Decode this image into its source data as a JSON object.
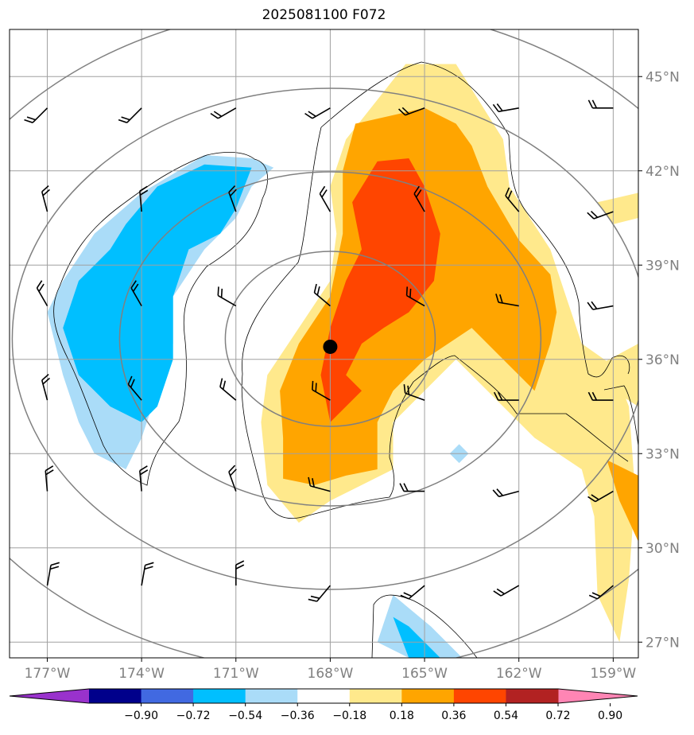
{
  "chart_data": {
    "type": "contour map",
    "title": "2025081100 F072",
    "x_ticks": [
      "177°W",
      "174°W",
      "171°W",
      "168°W",
      "165°W",
      "162°W",
      "159°W"
    ],
    "y_ticks": [
      "45°N",
      "42°N",
      "39°N",
      "36°N",
      "33°N",
      "30°N",
      "27°N"
    ],
    "x_tick_values": [
      -177,
      -174,
      -171,
      -168,
      -165,
      -162,
      -159
    ],
    "y_tick_values": [
      45,
      42,
      39,
      36,
      33,
      30,
      27
    ],
    "lon_range": [
      -178.2,
      -158.2
    ],
    "lat_range": [
      26.5,
      46.5
    ],
    "grid": true,
    "center_marker": {
      "lon": -168,
      "lat": 36.4
    },
    "range_rings": 4,
    "colorbar": {
      "orientation": "horizontal",
      "extend": "both",
      "ticks": [
        "−0.90",
        "−0.72",
        "−0.54",
        "−0.36",
        "−0.18",
        "0.18",
        "0.36",
        "0.54",
        "0.72",
        "0.90"
      ],
      "colors": [
        "#9932cc",
        "#00008b",
        "#4169e1",
        "#00bfff",
        "#aadcf8",
        "#ffffff",
        "#ffe98c",
        "#ffa500",
        "#ff4500",
        "#b22222",
        "#ff85b4"
      ]
    },
    "shaded_regions": [
      {
        "level": "0.18 to 0.36",
        "color": "#ffe98c",
        "points": [
          [
            -167.5,
            43.0
          ],
          [
            -165.6,
            45.4
          ],
          [
            -164.0,
            45.4
          ],
          [
            -162.5,
            43.0
          ],
          [
            -162.3,
            41.5
          ],
          [
            -161.0,
            39.5
          ],
          [
            -160.5,
            38.0
          ],
          [
            -160.0,
            36.5
          ],
          [
            -159.0,
            35.8
          ],
          [
            -158.5,
            34.5
          ],
          [
            -158.3,
            31.8
          ],
          [
            -158.5,
            29.0
          ],
          [
            -158.8,
            27.0
          ],
          [
            -159.5,
            28.5
          ],
          [
            -159.6,
            31.0
          ],
          [
            -160.0,
            32.5
          ],
          [
            -161.5,
            33.5
          ],
          [
            -162.5,
            34.5
          ],
          [
            -164.0,
            36.0
          ],
          [
            -166.0,
            34.0
          ],
          [
            -166.0,
            32.5
          ],
          [
            -167.0,
            32.0
          ],
          [
            -168.0,
            31.5
          ],
          [
            -169.0,
            30.8
          ],
          [
            -170.0,
            32.0
          ],
          [
            -170.2,
            34.0
          ],
          [
            -170.0,
            35.5
          ],
          [
            -169.0,
            37.0
          ],
          [
            -168.0,
            38.5
          ],
          [
            -167.8,
            40.0
          ],
          [
            -168.0,
            41.5
          ]
        ]
      },
      {
        "level": "0.18 to 0.36",
        "color": "#ffe98c",
        "points": [
          [
            -159.5,
            41.0
          ],
          [
            -158.2,
            41.3
          ],
          [
            -158.2,
            40.5
          ],
          [
            -159.0,
            40.3
          ]
        ]
      },
      {
        "level": "0.18 to 0.36",
        "color": "#ffe98c",
        "points": [
          [
            -159.5,
            35.8
          ],
          [
            -158.2,
            36.5
          ],
          [
            -158.2,
            34.5
          ],
          [
            -159.0,
            35.0
          ]
        ]
      },
      {
        "level": "0.36 to 0.54",
        "color": "#ffa500",
        "points": [
          [
            -167.2,
            43.5
          ],
          [
            -165.0,
            44.0
          ],
          [
            -164.0,
            43.5
          ],
          [
            -163.5,
            42.8
          ],
          [
            -163.0,
            41.5
          ],
          [
            -162.0,
            39.8
          ],
          [
            -161.0,
            38.7
          ],
          [
            -160.8,
            37.5
          ],
          [
            -161.0,
            36.5
          ],
          [
            -161.5,
            35.0
          ],
          [
            -162.5,
            36.0
          ],
          [
            -163.5,
            37.0
          ],
          [
            -165.0,
            36.0
          ],
          [
            -166.0,
            35.0
          ],
          [
            -166.5,
            34.0
          ],
          [
            -166.5,
            32.5
          ],
          [
            -167.5,
            32.3
          ],
          [
            -168.5,
            32.0
          ],
          [
            -169.5,
            32.2
          ],
          [
            -169.5,
            33.5
          ],
          [
            -169.6,
            35.0
          ],
          [
            -169.0,
            36.5
          ],
          [
            -168.0,
            38.0
          ],
          [
            -167.6,
            40.0
          ],
          [
            -167.6,
            42.0
          ]
        ]
      },
      {
        "level": "0.36 to 0.54",
        "color": "#ffa500",
        "points": [
          [
            -159.2,
            32.8
          ],
          [
            -158.2,
            32.3
          ],
          [
            -158.2,
            30.2
          ],
          [
            -158.8,
            31.5
          ]
        ]
      },
      {
        "level": "0.54 to 0.72",
        "color": "#ff4500",
        "points": [
          [
            -166.5,
            42.3
          ],
          [
            -165.5,
            42.4
          ],
          [
            -165.0,
            41.5
          ],
          [
            -164.5,
            40.0
          ],
          [
            -164.7,
            38.5
          ],
          [
            -165.5,
            37.5
          ],
          [
            -166.3,
            37.0
          ],
          [
            -167.0,
            36.5
          ],
          [
            -167.5,
            35.5
          ],
          [
            -167.0,
            35.0
          ],
          [
            -168.0,
            34.0
          ],
          [
            -168.3,
            35.5
          ],
          [
            -168.0,
            37.0
          ],
          [
            -167.5,
            38.5
          ],
          [
            -167.0,
            39.5
          ],
          [
            -167.3,
            41.0
          ]
        ]
      },
      {
        "level": "−0.36 to −0.18",
        "color": "#aadcf8",
        "points": [
          [
            -174.0,
            41.3
          ],
          [
            -172.0,
            42.5
          ],
          [
            -170.5,
            42.4
          ],
          [
            -169.8,
            42.1
          ],
          [
            -170.5,
            41.5
          ],
          [
            -171.0,
            40.5
          ],
          [
            -172.0,
            39.5
          ],
          [
            -173.0,
            38.0
          ],
          [
            -173.0,
            36.5
          ],
          [
            -173.5,
            35.0
          ],
          [
            -174.0,
            33.5
          ],
          [
            -174.5,
            32.5
          ],
          [
            -175.5,
            33.0
          ],
          [
            -176.0,
            34.0
          ],
          [
            -176.5,
            35.5
          ],
          [
            -177.0,
            37.5
          ],
          [
            -176.5,
            38.5
          ],
          [
            -175.5,
            40.0
          ]
        ]
      },
      {
        "level": "−0.54 to −0.36",
        "color": "#00bfff",
        "points": [
          [
            -173.5,
            41.5
          ],
          [
            -172.0,
            42.2
          ],
          [
            -170.5,
            42.1
          ],
          [
            -171.0,
            40.8
          ],
          [
            -171.5,
            40.0
          ],
          [
            -172.5,
            39.5
          ],
          [
            -173.0,
            38.0
          ],
          [
            -173.0,
            36.0
          ],
          [
            -173.5,
            34.5
          ],
          [
            -174.0,
            34.0
          ],
          [
            -175.0,
            34.5
          ],
          [
            -176.0,
            35.5
          ],
          [
            -176.5,
            37.0
          ],
          [
            -176.0,
            38.5
          ],
          [
            -175.0,
            39.5
          ],
          [
            -174.5,
            40.3
          ]
        ]
      },
      {
        "level": "−0.36 to −0.18",
        "color": "#aadcf8",
        "points": [
          [
            -165.5,
            26.5
          ],
          [
            -163.8,
            26.5
          ],
          [
            -164.8,
            27.5
          ],
          [
            -166.0,
            28.5
          ],
          [
            -166.5,
            27.0
          ]
        ]
      },
      {
        "level": "−0.54 to −0.36",
        "color": "#00bfff",
        "points": [
          [
            -165.5,
            26.5
          ],
          [
            -164.5,
            26.5
          ],
          [
            -165.5,
            27.5
          ],
          [
            -166.0,
            27.8
          ]
        ]
      },
      {
        "level": "−0.36 to −0.18",
        "color": "#aadcf8",
        "points": [
          [
            -163.9,
            33.3
          ],
          [
            -163.6,
            33.0
          ],
          [
            -163.9,
            32.7
          ],
          [
            -164.2,
            33.0
          ]
        ]
      }
    ],
    "wind_barbs": [
      {
        "lon": -177,
        "lat": 44.0,
        "dir": 225
      },
      {
        "lon": -174,
        "lat": 44.0,
        "dir": 225
      },
      {
        "lon": -171,
        "lat": 44.0,
        "dir": 240
      },
      {
        "lon": -168,
        "lat": 44.0,
        "dir": 240
      },
      {
        "lon": -165,
        "lat": 44.0,
        "dir": 250
      },
      {
        "lon": -162,
        "lat": 44.0,
        "dir": 260
      },
      {
        "lon": -159,
        "lat": 44.0,
        "dir": 270
      },
      {
        "lon": -177,
        "lat": 40.7,
        "dir": 345
      },
      {
        "lon": -174,
        "lat": 40.7,
        "dir": 355
      },
      {
        "lon": -171,
        "lat": 40.7,
        "dir": 340
      },
      {
        "lon": -168,
        "lat": 40.7,
        "dir": 330
      },
      {
        "lon": -165,
        "lat": 40.7,
        "dir": 330
      },
      {
        "lon": -162,
        "lat": 40.7,
        "dir": 320
      },
      {
        "lon": -159,
        "lat": 40.7,
        "dir": 250
      },
      {
        "lon": -177,
        "lat": 37.7,
        "dir": 330
      },
      {
        "lon": -174,
        "lat": 37.7,
        "dir": 330
      },
      {
        "lon": -171,
        "lat": 37.7,
        "dir": 300
      },
      {
        "lon": -168,
        "lat": 37.7,
        "dir": 310
      },
      {
        "lon": -165,
        "lat": 37.7,
        "dir": 300
      },
      {
        "lon": -162,
        "lat": 37.7,
        "dir": 280
      },
      {
        "lon": -159,
        "lat": 37.7,
        "dir": 260
      },
      {
        "lon": -177,
        "lat": 34.7,
        "dir": 345
      },
      {
        "lon": -174,
        "lat": 34.7,
        "dir": 320
      },
      {
        "lon": -171,
        "lat": 34.7,
        "dir": 310
      },
      {
        "lon": -168,
        "lat": 34.7,
        "dir": 300
      },
      {
        "lon": -165,
        "lat": 34.7,
        "dir": 290
      },
      {
        "lon": -162,
        "lat": 34.7,
        "dir": 270
      },
      {
        "lon": -159,
        "lat": 34.7,
        "dir": 270
      },
      {
        "lon": -177,
        "lat": 31.8,
        "dir": 355
      },
      {
        "lon": -174,
        "lat": 31.8,
        "dir": 355
      },
      {
        "lon": -171,
        "lat": 31.8,
        "dir": 340
      },
      {
        "lon": -168,
        "lat": 31.8,
        "dir": 285
      },
      {
        "lon": -165,
        "lat": 31.8,
        "dir": 270
      },
      {
        "lon": -162,
        "lat": 31.8,
        "dir": 255
      },
      {
        "lon": -159,
        "lat": 31.8,
        "dir": 240
      },
      {
        "lon": -177,
        "lat": 28.8,
        "dir": 10
      },
      {
        "lon": -174,
        "lat": 28.8,
        "dir": 10
      },
      {
        "lon": -171,
        "lat": 28.8,
        "dir": 0
      },
      {
        "lon": -168,
        "lat": 28.8,
        "dir": 220
      },
      {
        "lon": -165,
        "lat": 28.8,
        "dir": 230
      },
      {
        "lon": -162,
        "lat": 28.8,
        "dir": 240
      },
      {
        "lon": -159,
        "lat": 28.8,
        "dir": 230
      }
    ]
  }
}
